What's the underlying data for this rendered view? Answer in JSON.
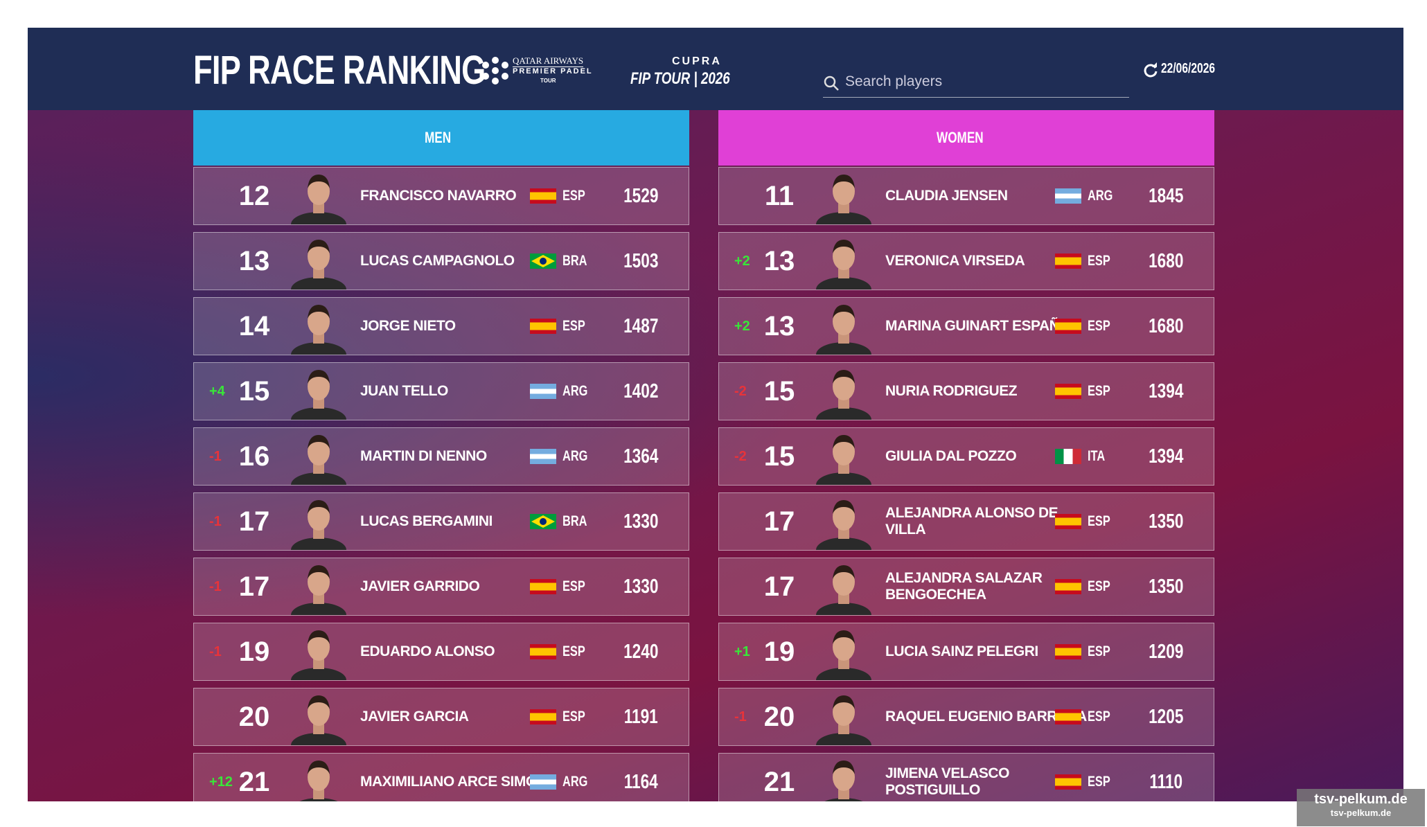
{
  "header": {
    "title": "FIP RACE RANKING",
    "sponsor": {
      "line1": "QATAR AIRWAYS",
      "line2": "PREMIER PADEL",
      "line3": "TOUR"
    },
    "brand": {
      "name": "CUPRA",
      "tour": "FIP TOUR | 2026"
    },
    "search_placeholder": "Search players",
    "date": "22/06/2026"
  },
  "men": {
    "title": "MEN",
    "rows": [
      {
        "rank": 12,
        "name": "FRANCISCO NAVARRO",
        "country": "ESP",
        "points": 1529
      },
      {
        "rank": 13,
        "name": "LUCAS CAMPAGNOLO",
        "country": "BRA",
        "points": 1503
      },
      {
        "rank": 14,
        "name": "JORGE NIETO",
        "country": "ESP",
        "points": 1487
      },
      {
        "change": "+4",
        "rank": 15,
        "name": "JUAN TELLO",
        "country": "ARG",
        "points": 1402
      },
      {
        "change": "-1",
        "rank": 16,
        "name": "MARTIN DI NENNO",
        "country": "ARG",
        "points": 1364
      },
      {
        "change": "-1",
        "rank": 17,
        "name": "LUCAS BERGAMINI",
        "country": "BRA",
        "points": 1330
      },
      {
        "change": "-1",
        "rank": 17,
        "name": "JAVIER GARRIDO",
        "country": "ESP",
        "points": 1330
      },
      {
        "change": "-1",
        "rank": 19,
        "name": "EDUARDO ALONSO",
        "country": "ESP",
        "points": 1240
      },
      {
        "rank": 20,
        "name": "JAVIER GARCIA",
        "country": "ESP",
        "points": 1191
      },
      {
        "change": "+12",
        "rank": 21,
        "name": "MAXIMILIANO ARCE SIMO",
        "country": "ARG",
        "points": 1164
      }
    ]
  },
  "women": {
    "title": "WOMEN",
    "rows": [
      {
        "rank": 11,
        "name": "CLAUDIA JENSEN",
        "country": "ARG",
        "points": 1845
      },
      {
        "change": "+2",
        "rank": 13,
        "name": "VERONICA VIRSEDA",
        "country": "ESP",
        "points": 1680
      },
      {
        "change": "+2",
        "rank": 13,
        "name": "MARINA GUINART ESPAÑA",
        "country": "ESP",
        "points": 1680
      },
      {
        "change": "-2",
        "rank": 15,
        "name": "NURIA RODRIGUEZ",
        "country": "ESP",
        "points": 1394
      },
      {
        "change": "-2",
        "rank": 15,
        "name": "GIULIA DAL POZZO",
        "country": "ITA",
        "points": 1394
      },
      {
        "rank": 17,
        "name": "ALEJANDRA ALONSO DE VILLA",
        "country": "ESP",
        "points": 1350
      },
      {
        "rank": 17,
        "name": "ALEJANDRA SALAZAR BENGOECHEA",
        "country": "ESP",
        "points": 1350
      },
      {
        "change": "+1",
        "rank": 19,
        "name": "LUCIA SAINZ PELEGRI",
        "country": "ESP",
        "points": 1209
      },
      {
        "change": "-1",
        "rank": 20,
        "name": "RAQUEL EUGENIO BARRERA",
        "country": "ESP",
        "points": 1205
      },
      {
        "rank": 21,
        "name": "JIMENA VELASCO POSTIGUILLO",
        "country": "ESP",
        "points": 1110
      }
    ]
  },
  "watermark": {
    "line1": "tsv-pelkum.de",
    "line2": "tsv-pelkum.de"
  }
}
